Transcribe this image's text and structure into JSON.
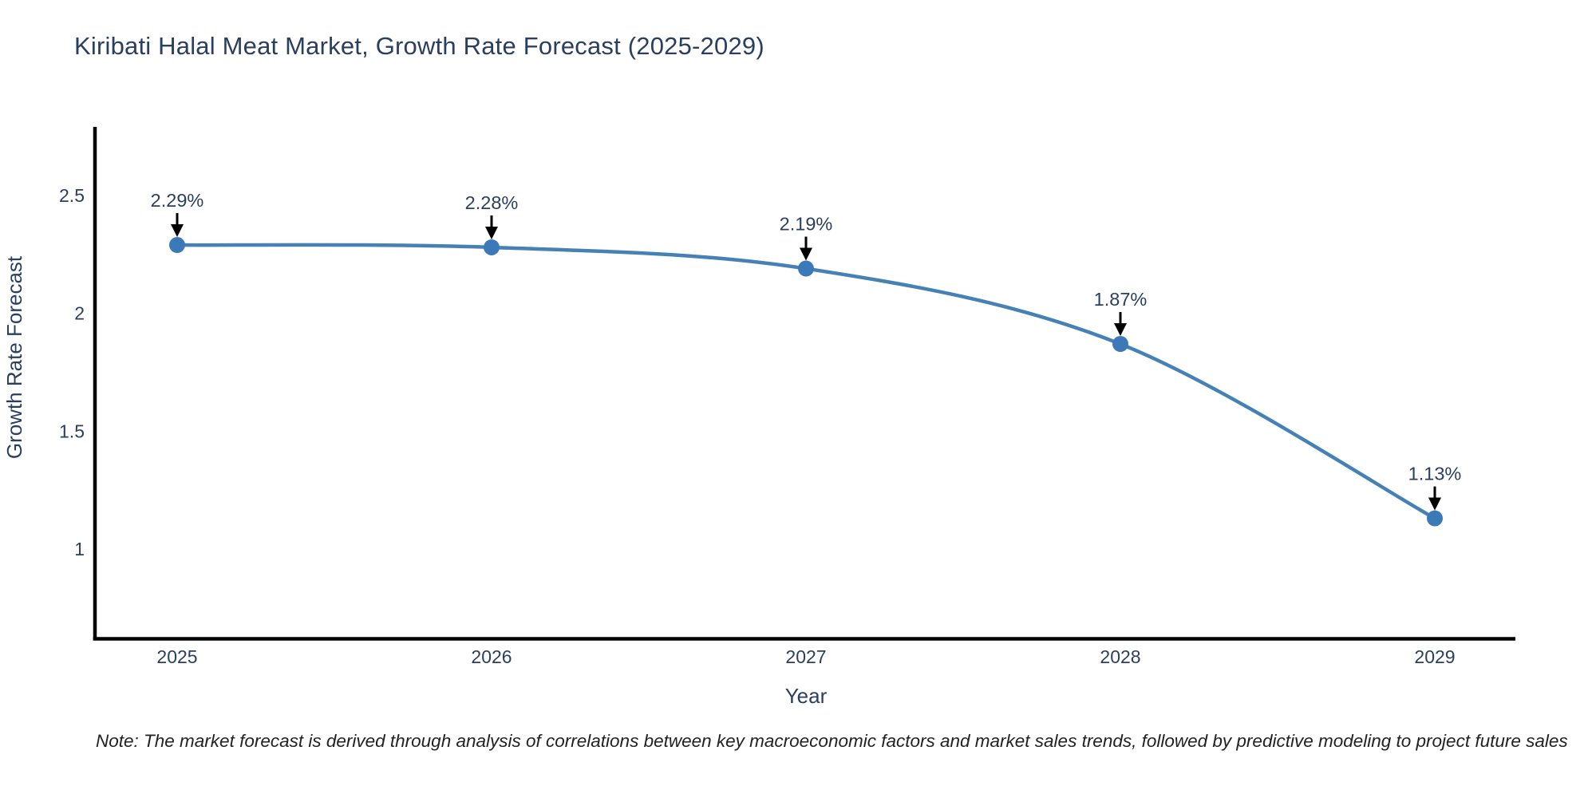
{
  "chart_data": {
    "type": "line",
    "title": "Kiribati Halal Meat Market, Growth Rate Forecast (2025-2029)",
    "xlabel": "Year",
    "ylabel": "Growth Rate Forecast",
    "x": [
      2025,
      2026,
      2027,
      2028,
      2029
    ],
    "values": [
      2.29,
      2.28,
      2.19,
      1.87,
      1.13
    ],
    "point_labels": [
      "2.29%",
      "2.28%",
      "2.19%",
      "1.87%",
      "1.13%"
    ],
    "xtick_labels": [
      "2025",
      "2026",
      "2027",
      "2028",
      "2029"
    ],
    "ytick_values": [
      2.5,
      2.0,
      1.5,
      1.0
    ],
    "ytick_labels": [
      "2.5",
      "2",
      "1.5",
      "1"
    ],
    "ylim": [
      0.62,
      2.79
    ],
    "xlim": [
      2024.73,
      2029.26
    ],
    "grid": false,
    "legend_position": "none",
    "line_color": "#4581b5",
    "marker_color": "#3c79b8",
    "axis_color": "#000000",
    "text_color": "#2a3f5f",
    "annotation_color": "#2a3f5f",
    "arrow_color": "#000000"
  },
  "note": "Note: The market forecast is derived through analysis of correlations between key macroeconomic factors and market sales trends, followed by predictive modeling to project future sales"
}
